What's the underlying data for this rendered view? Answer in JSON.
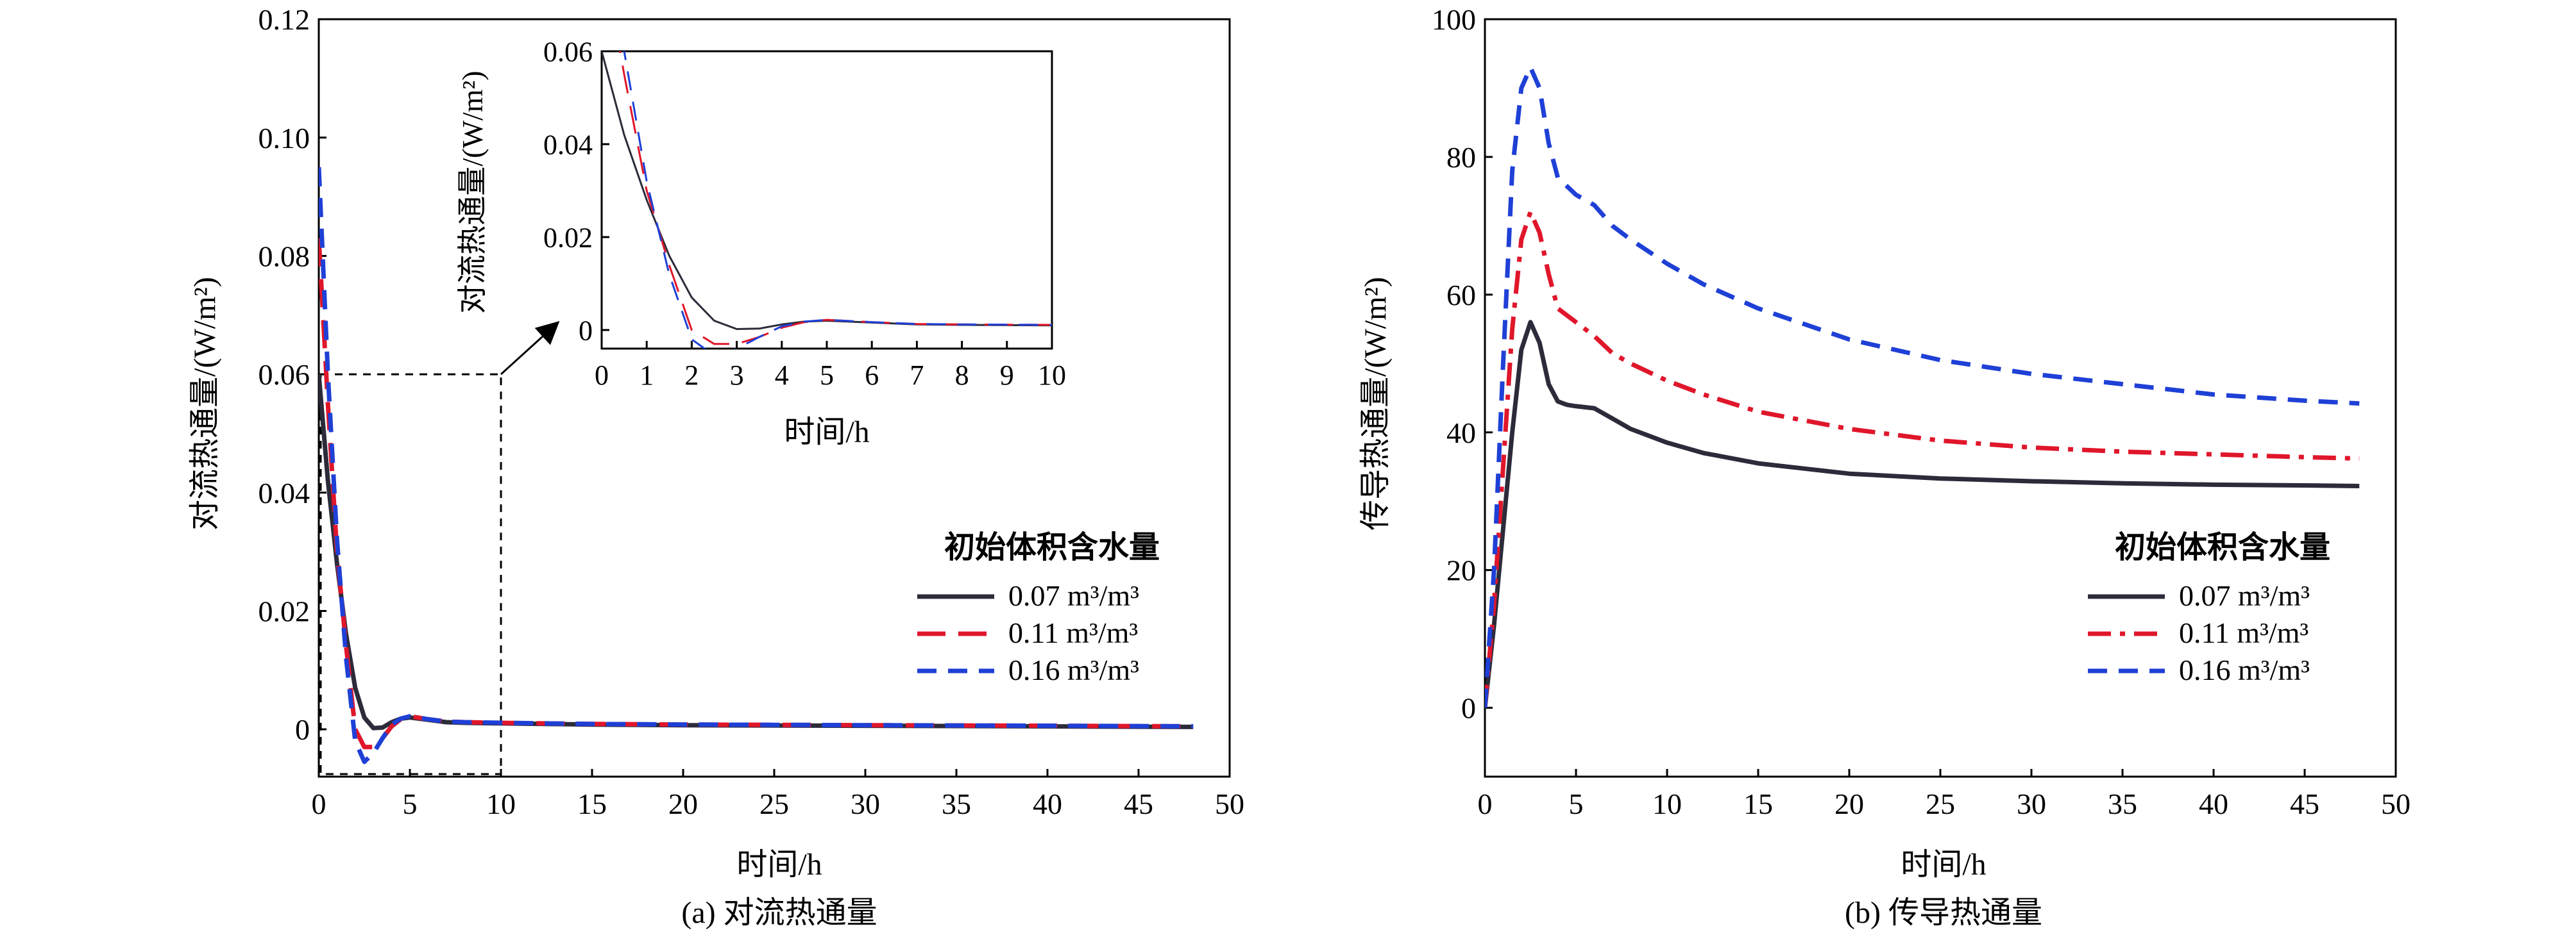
{
  "chart_data": [
    {
      "id": "a",
      "type": "line",
      "caption": "(a) 对流热通量",
      "xlabel": "时间/h",
      "ylabel": "对流热通量/(W/m²)",
      "xlim": [
        0,
        50
      ],
      "ylim": [
        -0.008,
        0.12
      ],
      "xticks": [
        "0",
        "5",
        "10",
        "15",
        "20",
        "25",
        "30",
        "35",
        "40",
        "45",
        "50"
      ],
      "yticks": [
        "0",
        "0.02",
        "0.04",
        "0.06",
        "0.08",
        "0.10",
        "0.12"
      ],
      "legend_title": "初始体积含水量",
      "legend_position": "right",
      "series": [
        {
          "name": "0.07 m³/m³",
          "color": "#2b2b3a",
          "dash": "solid",
          "x": [
            0,
            0.5,
            1,
            1.5,
            2,
            2.5,
            3,
            3.5,
            4,
            4.5,
            5,
            6,
            7,
            8,
            10,
            15,
            20,
            30,
            40,
            48
          ],
          "y": [
            0.06,
            0.042,
            0.028,
            0.016,
            0.007,
            0.002,
            0.0002,
            0.0003,
            0.0012,
            0.0018,
            0.002,
            0.0016,
            0.0012,
            0.0011,
            0.001,
            0.0008,
            0.0007,
            0.0006,
            0.0005,
            0.0004
          ]
        },
        {
          "name": "0.11 m³/m³",
          "color": "#e0162b",
          "dash": "long",
          "x": [
            0,
            0.5,
            1,
            1.5,
            2,
            2.5,
            3,
            3.5,
            4,
            4.5,
            5,
            6,
            7,
            8,
            10,
            15,
            20,
            30,
            40,
            48
          ],
          "y": [
            0.083,
            0.055,
            0.03,
            0.014,
            0.0,
            -0.003,
            -0.003,
            -0.0015,
            0.0005,
            0.0017,
            0.0022,
            0.0017,
            0.0013,
            0.0012,
            0.0011,
            0.0009,
            0.0008,
            0.0007,
            0.0006,
            0.0005
          ]
        },
        {
          "name": "0.16 m³/m³",
          "color": "#1f40d6",
          "dash": "dash",
          "x": [
            0,
            0.5,
            1,
            1.5,
            2,
            2.5,
            3,
            3.5,
            4,
            4.5,
            5,
            6,
            7,
            8,
            10,
            15,
            20,
            30,
            40,
            48
          ],
          "y": [
            0.095,
            0.06,
            0.032,
            0.012,
            -0.002,
            -0.0055,
            -0.004,
            -0.0015,
            0.0008,
            0.0018,
            0.0022,
            0.0017,
            0.0013,
            0.0012,
            0.0011,
            0.0009,
            0.0008,
            0.0007,
            0.0006,
            0.0005
          ]
        }
      ],
      "zoom_box": {
        "xlim": [
          0,
          10
        ],
        "ylim": [
          -0.008,
          0.06
        ]
      },
      "inset": {
        "xlabel": "时间/h",
        "ylabel": "对流热通量/(W/m²)",
        "xlim": [
          0,
          10
        ],
        "ylim": [
          -0.004,
          0.06
        ],
        "xticks": [
          "0",
          "1",
          "2",
          "3",
          "4",
          "5",
          "6",
          "7",
          "8",
          "9",
          "10"
        ],
        "yticks": [
          "0",
          "0.02",
          "0.04",
          "0.06"
        ]
      }
    },
    {
      "id": "b",
      "type": "line",
      "caption": "(b) 传导热通量",
      "xlabel": "时间/h",
      "ylabel": "传导热通量/(W/m²)",
      "xlim": [
        0,
        50
      ],
      "ylim": [
        -10,
        100
      ],
      "xticks": [
        "0",
        "5",
        "10",
        "15",
        "20",
        "25",
        "30",
        "35",
        "40",
        "45",
        "50"
      ],
      "yticks": [
        "0",
        "20",
        "40",
        "60",
        "80",
        "100"
      ],
      "legend_title": "初始体积含水量",
      "legend_position": "right",
      "series": [
        {
          "name": "0.07 m³/m³",
          "color": "#2b2b3a",
          "dash": "solid",
          "x": [
            0,
            0.5,
            1,
            1.5,
            2,
            2.5,
            3,
            3.5,
            4,
            4.5,
            5,
            6,
            7,
            8,
            10,
            12,
            15,
            20,
            25,
            30,
            35,
            40,
            45,
            48
          ],
          "y": [
            0,
            12,
            26,
            40,
            52,
            56,
            53,
            47,
            44.5,
            44,
            43.8,
            43.5,
            42,
            40.5,
            38.5,
            37,
            35.5,
            34,
            33.3,
            32.9,
            32.6,
            32.4,
            32.3,
            32.2
          ]
        },
        {
          "name": "0.11 m³/m³",
          "color": "#e0162b",
          "dash": "dashdot",
          "x": [
            0,
            0.5,
            1,
            1.5,
            2,
            2.5,
            3,
            3.5,
            4,
            5,
            6,
            7,
            8,
            10,
            12,
            15,
            20,
            25,
            30,
            35,
            40,
            45,
            48
          ],
          "y": [
            0,
            15,
            35,
            55,
            68,
            72,
            69,
            63,
            58,
            56,
            54,
            51.5,
            50,
            47.5,
            45.5,
            43,
            40.5,
            38.8,
            37.8,
            37.2,
            36.8,
            36.4,
            36.2
          ]
        },
        {
          "name": "0.16 m³/m³",
          "color": "#1f40d6",
          "dash": "dash",
          "x": [
            0,
            0.5,
            1,
            1.5,
            2,
            2.5,
            3,
            3.5,
            4,
            5,
            6,
            7,
            8,
            10,
            12,
            15,
            20,
            25,
            30,
            35,
            40,
            45,
            48
          ],
          "y": [
            0,
            20,
            50,
            78,
            90,
            93,
            90,
            82,
            77,
            74.5,
            73,
            70,
            68,
            64.5,
            61.5,
            58,
            53.5,
            50.5,
            48.5,
            47,
            45.5,
            44.6,
            44.2
          ]
        }
      ]
    }
  ]
}
